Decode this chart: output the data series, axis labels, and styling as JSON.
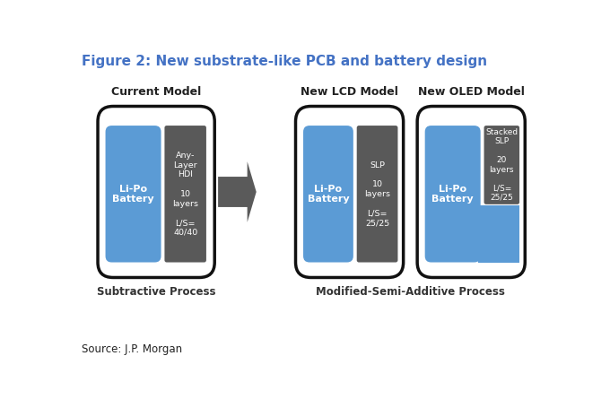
{
  "title": "Figure 2: New substrate-like PCB and battery design",
  "title_color": "#4472C4",
  "title_fontsize": 11,
  "bg_color": "#ffffff",
  "blue_color": "#5B9BD5",
  "dark_color": "#595959",
  "models": [
    "Current Model",
    "New LCD Model",
    "New OLED Model"
  ],
  "battery_label": "Li-Po\nBattery",
  "pcb_label_current": "Any-\nLayer\nHDI\n\n10\nlayers\n\nL/S=\n40/40",
  "pcb_label_lcd": "SLP\n\n10\nlayers\n\nL/S=\n25/25",
  "pcb_label_oled": "Stacked\nSLP\n\n20\nlayers\n\nL/S=\n25/25",
  "subtitle_left": "Subtractive Process",
  "subtitle_right": "Modified-Semi-Additive Process",
  "source_text": "Source: J.P. Morgan",
  "white": "#ffffff",
  "arrow_color": "#5A5A5A"
}
